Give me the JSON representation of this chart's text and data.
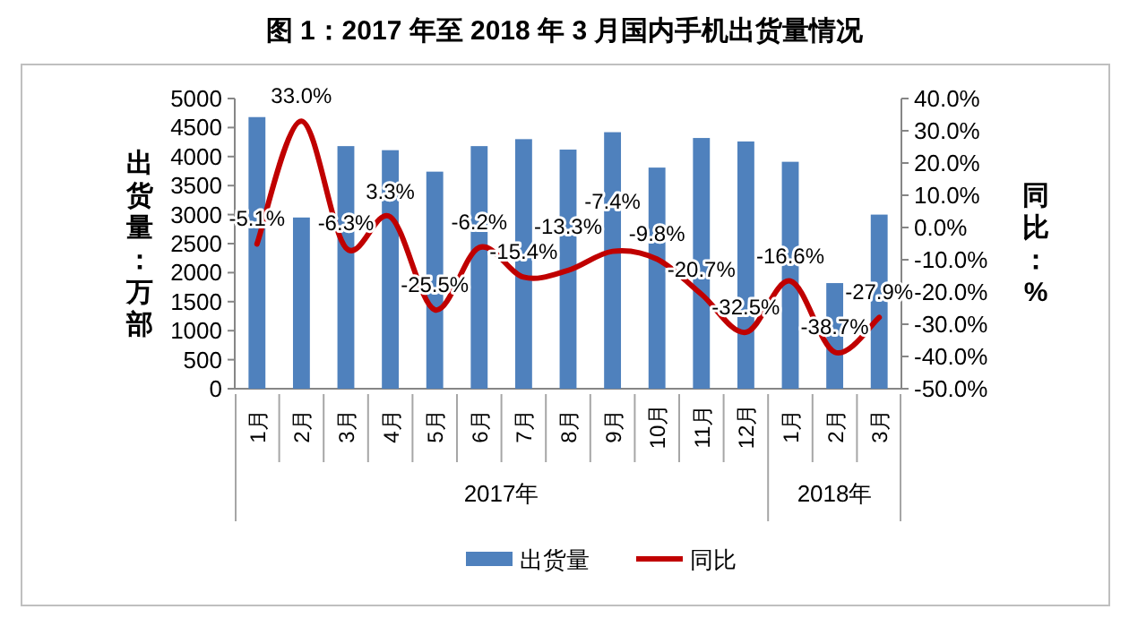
{
  "chart_data": {
    "type": "bar",
    "title": "图 1：2017 年至 2018 年 3 月国内手机出货量情况",
    "ylabel": "出货量：万部",
    "y2label": "同比：%",
    "categories": [
      "1月",
      "2月",
      "3月",
      "4月",
      "5月",
      "6月",
      "7月",
      "8月",
      "9月",
      "10月",
      "11月",
      "12月",
      "1月",
      "2月",
      "3月"
    ],
    "annotations": [
      "2017年",
      "2018年"
    ],
    "series": [
      {
        "name": "出货量",
        "color": "#4f81bd",
        "values": [
          4680,
          2950,
          4180,
          4110,
          3740,
          4180,
          4300,
          4120,
          4420,
          3810,
          4320,
          4260,
          3910,
          1820,
          3000
        ]
      },
      {
        "name": "同比",
        "type": "line",
        "axis": "y2",
        "color": "#c00000",
        "data_labels": true,
        "value_labels": [
          "-5.1%",
          "33.0%",
          "-6.3%",
          "3.3%",
          "-25.5%",
          "-6.2%",
          "-15.4%",
          "-13.3%",
          "-7.4%",
          "-9.8%",
          "-20.7%",
          "-32.5%",
          "-16.6%",
          "-38.7%",
          "-27.9%"
        ],
        "values": [
          -5.1,
          33.0,
          -6.3,
          3.3,
          -25.5,
          -6.2,
          -15.4,
          -13.3,
          -7.4,
          -9.8,
          -20.7,
          -32.5,
          -16.6,
          -38.7,
          -27.9
        ]
      }
    ],
    "ylim": [
      0,
      5000
    ],
    "yticks": [
      0,
      500,
      1000,
      1500,
      2000,
      2500,
      3000,
      3500,
      4000,
      4500,
      5000
    ],
    "y2lim": [
      -50,
      40
    ],
    "y2ticks": [
      {
        "value": -50,
        "label": "-50.0%"
      },
      {
        "value": -40,
        "label": "-40.0%"
      },
      {
        "value": -30,
        "label": "-30.0%"
      },
      {
        "value": -20,
        "label": "-20.0%"
      },
      {
        "value": -10,
        "label": "-10.0%"
      },
      {
        "value": 0,
        "label": "0.0%"
      },
      {
        "value": 10,
        "label": "10.0%"
      },
      {
        "value": 20,
        "label": "20.0%"
      },
      {
        "value": 30,
        "label": "30.0%"
      },
      {
        "value": 40,
        "label": "40.0%"
      }
    ],
    "grid": false,
    "legend": "bottom"
  }
}
